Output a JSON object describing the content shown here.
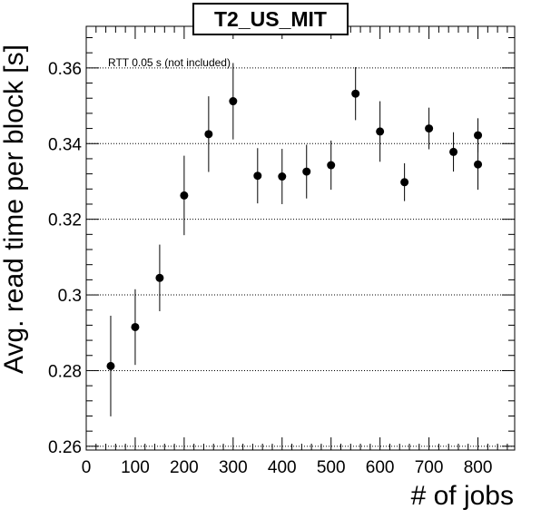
{
  "chart_data": {
    "type": "scatter",
    "title": "T2_US_MIT",
    "xlabel": "# of jobs",
    "ylabel": "Avg. read time per block [s]",
    "annotation": "RTT 0.05 s (not included)",
    "xlim": [
      0,
      875
    ],
    "ylim": [
      0.259,
      0.371
    ],
    "x_ticks": [
      0,
      100,
      200,
      300,
      400,
      500,
      600,
      700,
      800
    ],
    "x_tick_labels": [
      "0",
      "100",
      "200",
      "300",
      "400",
      "500",
      "600",
      "700",
      "800"
    ],
    "y_ticks": [
      0.26,
      0.28,
      0.3,
      0.32,
      0.34,
      0.36
    ],
    "y_tick_labels": [
      "0.26",
      "0.28",
      "0.3",
      "0.32",
      "0.34",
      "0.36"
    ],
    "grid": "horizontal dotted",
    "marker_color": "#000000",
    "series": [
      {
        "x": [
          50,
          100,
          150,
          200,
          250,
          300,
          350,
          400,
          450,
          500,
          550,
          600,
          650,
          700,
          750,
          800,
          800
        ],
        "y": [
          0.2812,
          0.2915,
          0.3045,
          0.3263,
          0.3425,
          0.3512,
          0.3315,
          0.3313,
          0.3326,
          0.3343,
          0.3532,
          0.3432,
          0.3298,
          0.344,
          0.3378,
          0.3422,
          0.3345
        ],
        "yerr": [
          0.0133,
          0.01,
          0.0088,
          0.0105,
          0.01,
          0.0101,
          0.0073,
          0.0073,
          0.0071,
          0.0065,
          0.007,
          0.008,
          0.005,
          0.0055,
          0.0052,
          0.0045,
          0.0067
        ]
      }
    ]
  }
}
